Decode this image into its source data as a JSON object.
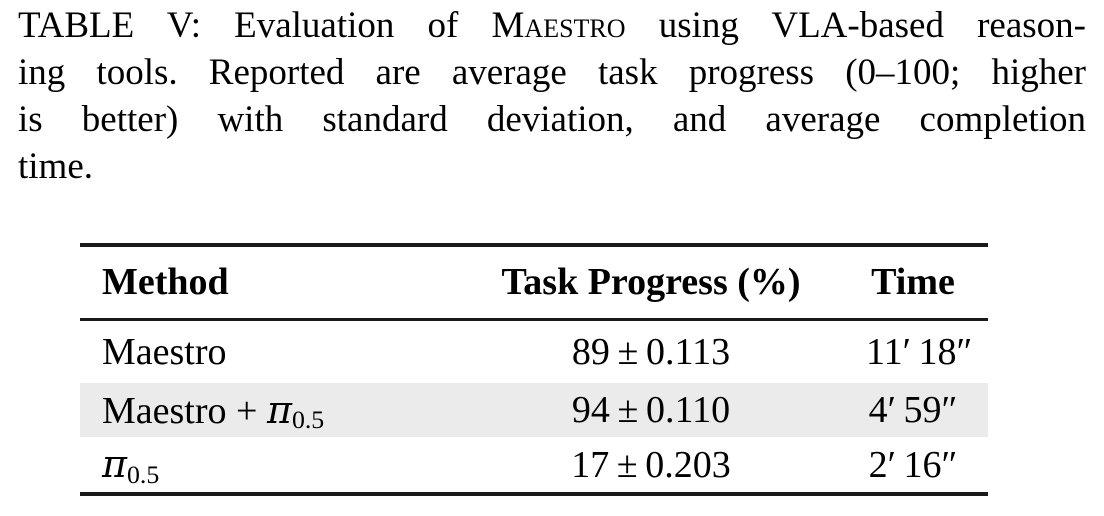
{
  "caption": {
    "line1_pre": "TABLE V: Evaluation of ",
    "system_name": "Maestro",
    "line1_post": " using VLA-based reason-",
    "line2": "ing tools. Reported are average task progress (0–100; higher",
    "line3": "is better) with standard deviation, and average completion",
    "line4": "time."
  },
  "table": {
    "headers": {
      "method": "Method",
      "progress": "Task Progress (%)",
      "time": "Time"
    },
    "rows": [
      {
        "method_text": "Maestro",
        "pi": "",
        "pi_sub": "",
        "progress": "89 ± 0.113",
        "time": "11′ 18″",
        "highlight": false
      },
      {
        "method_text": "Maestro + ",
        "pi": "π",
        "pi_sub": "0.5",
        "progress": "94 ± 0.110",
        "time": "4′ 59″",
        "highlight": true
      },
      {
        "method_text": "",
        "pi": "π",
        "pi_sub": "0.5",
        "progress": "17 ± 0.203",
        "time": "2′ 16″",
        "highlight": false
      }
    ]
  },
  "colors": {
    "text": "#000000",
    "rule": "#1a1a1a",
    "row_highlight": "#ebebeb",
    "background": "#ffffff"
  }
}
